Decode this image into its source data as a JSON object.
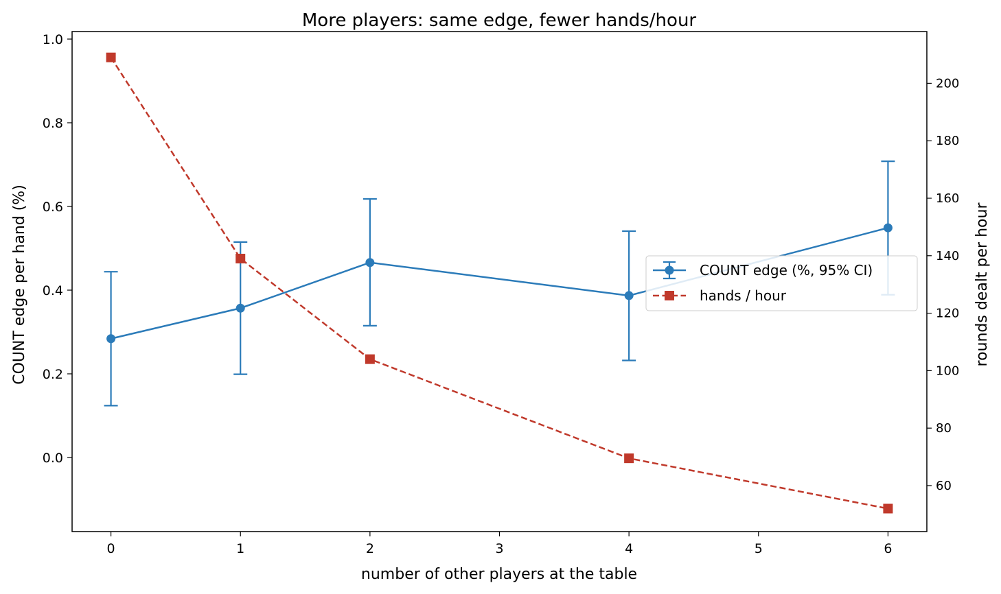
{
  "chart_data": {
    "type": "line",
    "title": "More players: same edge, fewer hands/hour",
    "xlabel": "number of other players at the table",
    "ylabel": "COUNT edge per hand (%)",
    "y2label": "rounds dealt per hour",
    "x": [
      0,
      1,
      2,
      4,
      6
    ],
    "xlim": [
      -0.3,
      6.3
    ],
    "xticks": [
      "0",
      "1",
      "2",
      "3",
      "4",
      "5",
      "6"
    ],
    "ylim": [
      -0.177,
      1.018
    ],
    "yticks": [
      "0.0",
      "0.2",
      "0.4",
      "0.6",
      "0.8",
      "1.0"
    ],
    "y2lim": [
      44,
      218
    ],
    "y2ticks": [
      "60",
      "80",
      "100",
      "120",
      "140",
      "160",
      "180",
      "200"
    ],
    "grid": false,
    "legend_position": "center-right",
    "series": [
      {
        "name": "COUNT edge (%, 95% CI)",
        "axis": "left",
        "color": "#2b7bb9",
        "marker": "circle",
        "line_style": "solid",
        "values": [
          0.284,
          0.357,
          0.466,
          0.387,
          0.549
        ],
        "ci_low": [
          0.124,
          0.199,
          0.315,
          0.232,
          0.389
        ],
        "ci_high": [
          0.444,
          0.515,
          0.618,
          0.541,
          0.708
        ]
      },
      {
        "name": "hands / hour",
        "axis": "right",
        "color": "#c0392b",
        "marker": "square",
        "line_style": "dashed",
        "values": [
          209,
          139,
          104,
          69.5,
          52
        ]
      }
    ]
  }
}
